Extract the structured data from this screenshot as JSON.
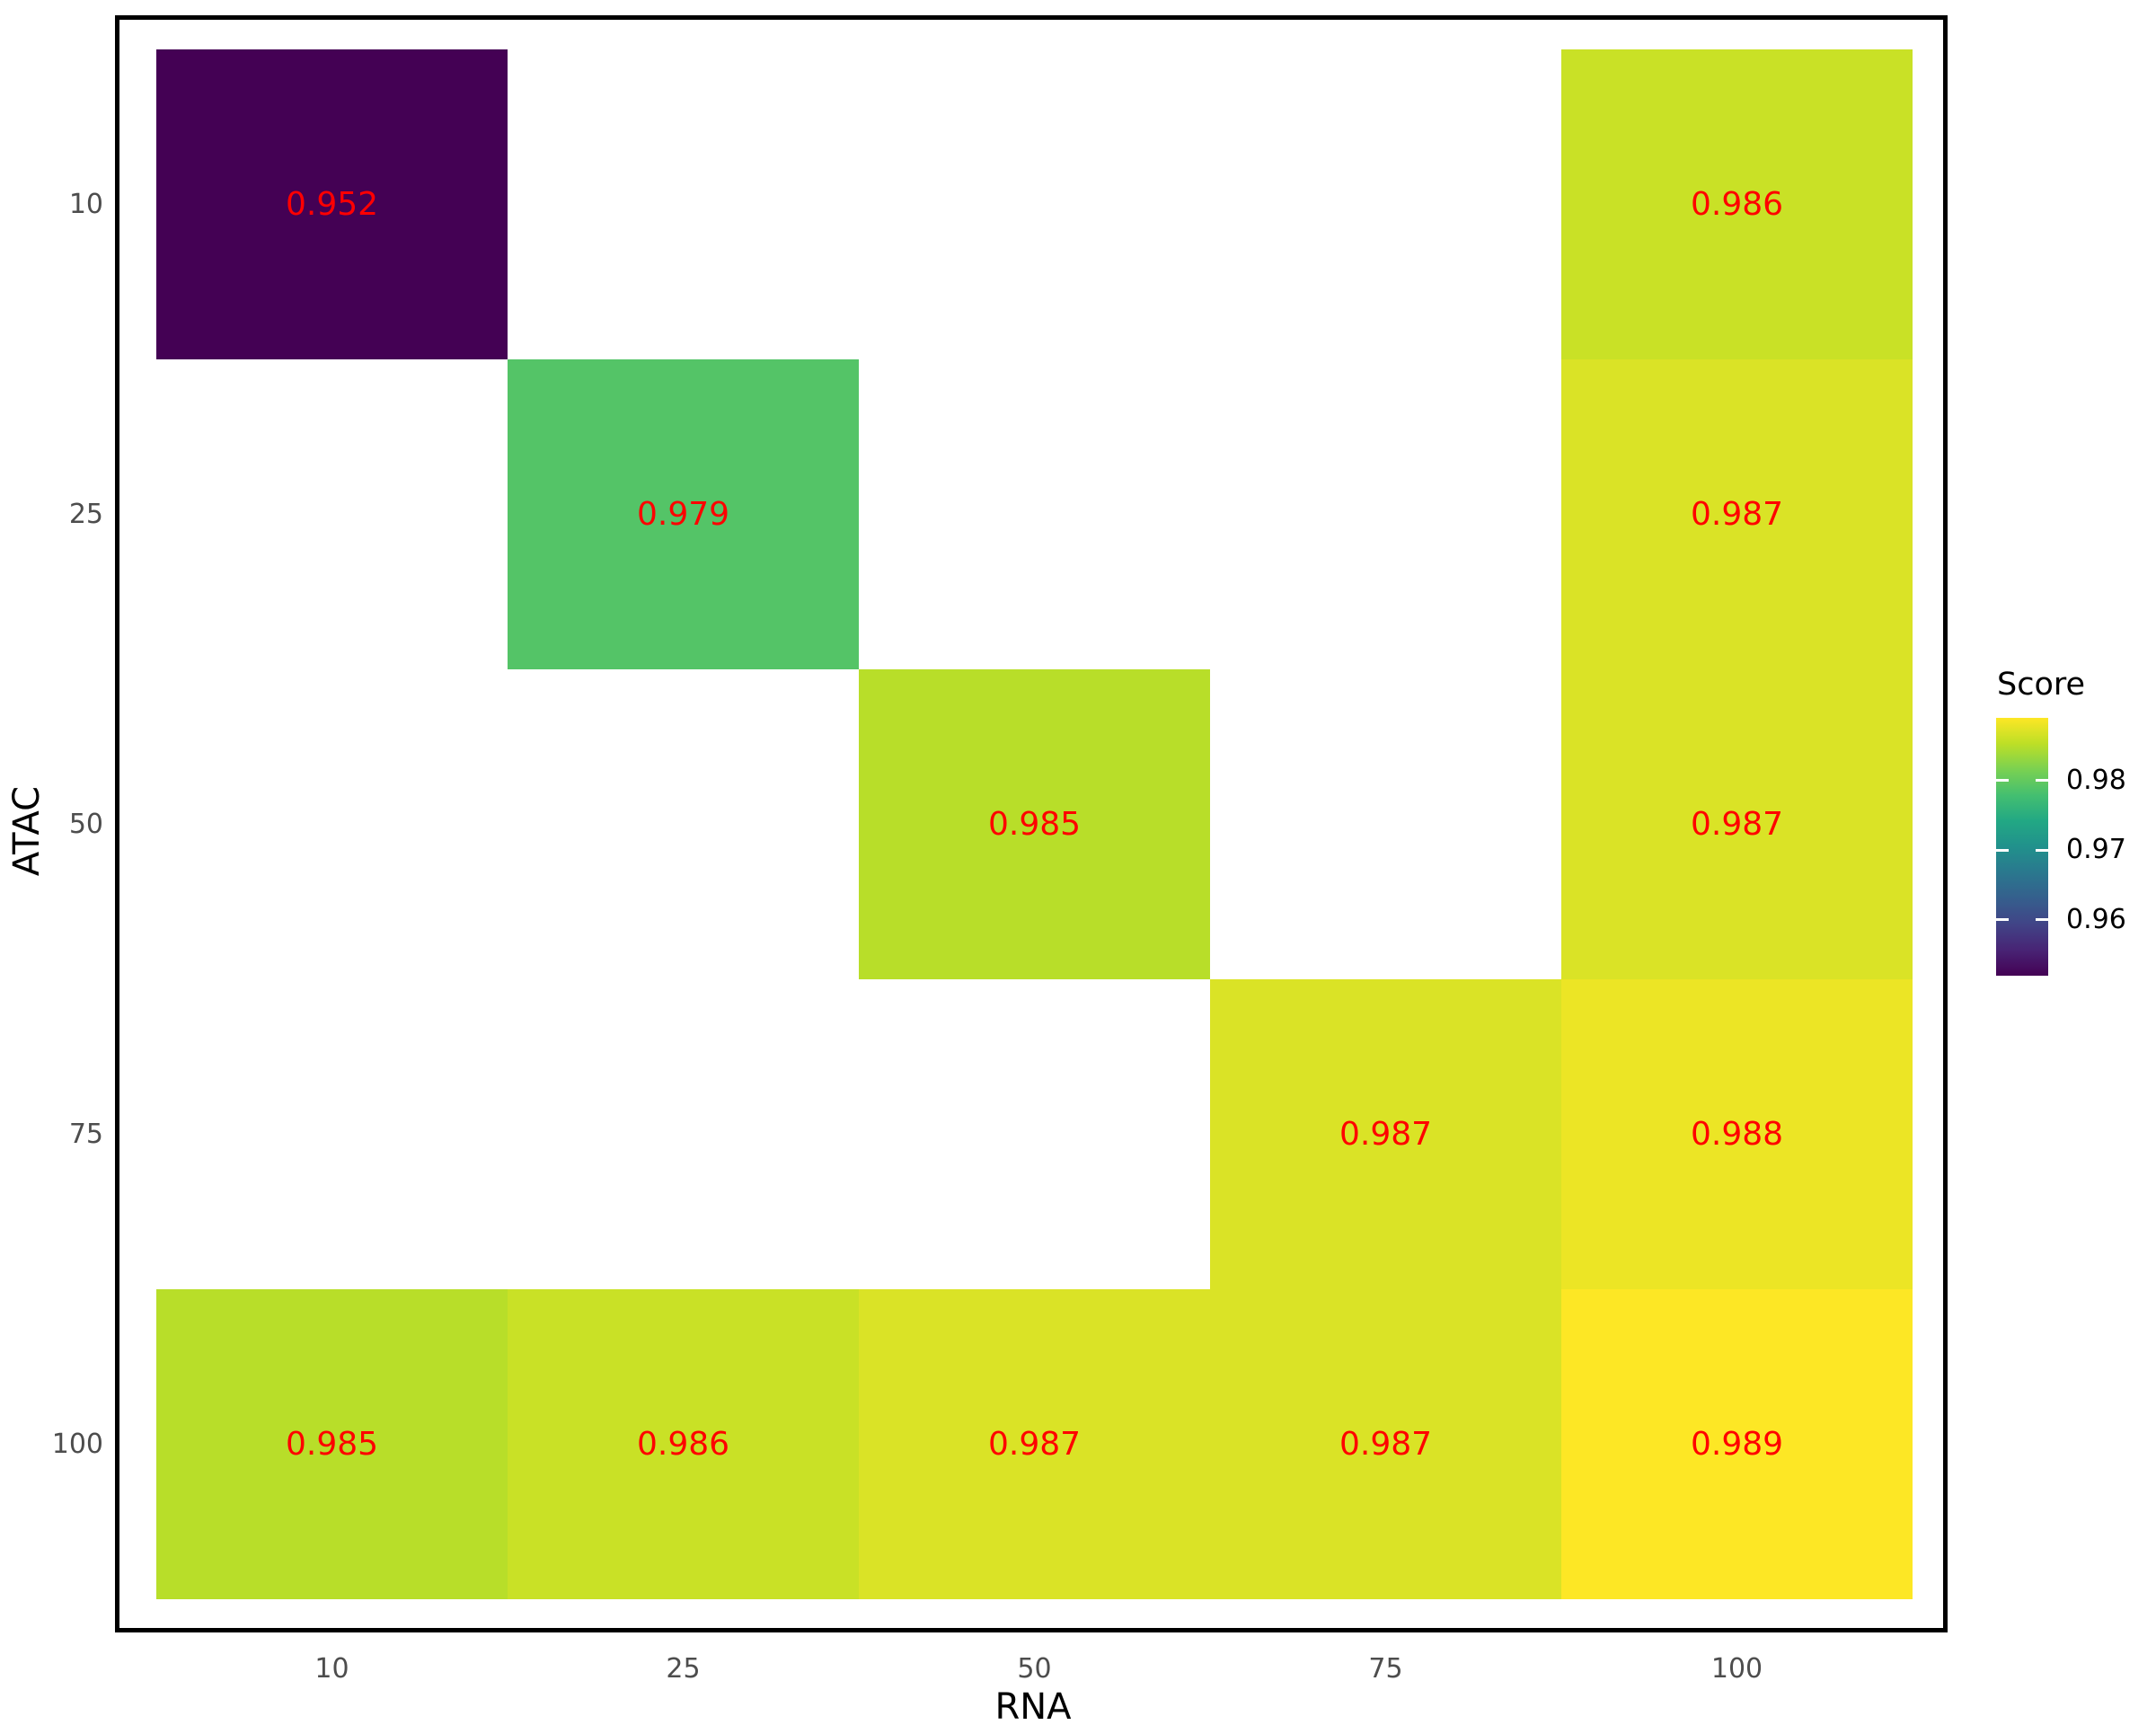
{
  "figure": {
    "background_color": "#ffffff",
    "panel_border_color": "#000000"
  },
  "chart_data": {
    "type": "heatmap",
    "title": "",
    "xlabel": "RNA",
    "ylabel": "ATAC",
    "x_categories": [
      "10",
      "25",
      "50",
      "75",
      "100"
    ],
    "y_categories": [
      "10",
      "25",
      "50",
      "75",
      "100"
    ],
    "tile_label_color": "#ff0000",
    "axis_tick_color": "#4d4d4d",
    "axis_title_color": "#000000",
    "grid": "off",
    "tiles": [
      {
        "rna": "10",
        "atac": "10",
        "score": "0.952",
        "color": "#440154"
      },
      {
        "rna": "100",
        "atac": "10",
        "score": "0.986",
        "color": "#c9e126"
      },
      {
        "rna": "25",
        "atac": "25",
        "score": "0.979",
        "color": "#54c467"
      },
      {
        "rna": "100",
        "atac": "25",
        "score": "0.987",
        "color": "#dae326"
      },
      {
        "rna": "50",
        "atac": "50",
        "score": "0.985",
        "color": "#b8de29"
      },
      {
        "rna": "100",
        "atac": "50",
        "score": "0.987",
        "color": "#dae326"
      },
      {
        "rna": "75",
        "atac": "75",
        "score": "0.987",
        "color": "#dae326"
      },
      {
        "rna": "100",
        "atac": "75",
        "score": "0.988",
        "color": "#ece525"
      },
      {
        "rna": "10",
        "atac": "100",
        "score": "0.985",
        "color": "#b8de29"
      },
      {
        "rna": "25",
        "atac": "100",
        "score": "0.986",
        "color": "#c9e126"
      },
      {
        "rna": "50",
        "atac": "100",
        "score": "0.987",
        "color": "#dae326"
      },
      {
        "rna": "75",
        "atac": "100",
        "score": "0.987",
        "color": "#dae326"
      },
      {
        "rna": "100",
        "atac": "100",
        "score": "0.989",
        "color": "#fde725"
      }
    ],
    "legend": {
      "title": "Score",
      "position": "right",
      "domain_min": 0.952,
      "domain_max": 0.989,
      "ticks": [
        {
          "value": 0.98,
          "label": "0.98"
        },
        {
          "value": 0.97,
          "label": "0.97"
        },
        {
          "value": 0.96,
          "label": "0.96"
        }
      ],
      "tick_label_color": "#000000",
      "tick_mark_color": "#ffffff",
      "gradient_bottom_to_top": [
        "#440154",
        "#482475",
        "#414487",
        "#355f8d",
        "#2a788e",
        "#21918c",
        "#22a884",
        "#44bf70",
        "#7ad151",
        "#bddf26",
        "#fde725"
      ]
    }
  }
}
